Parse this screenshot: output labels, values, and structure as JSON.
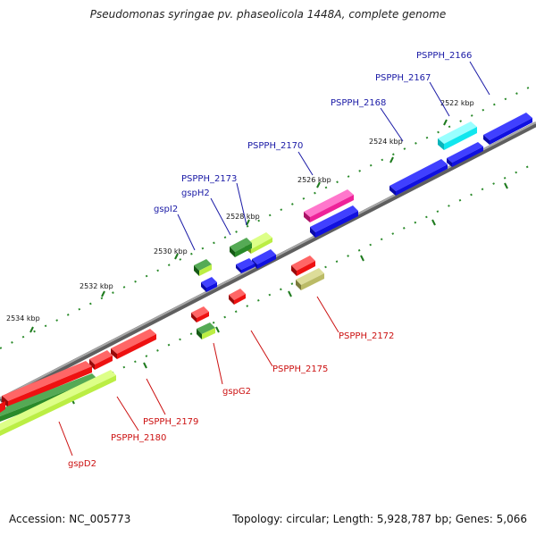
{
  "title": "Pseudomonas syringae pv. phaseolicola 1448A, complete genome",
  "footer": {
    "accession": "Accession: NC_005773",
    "summary": "Topology: circular; Length: 5,928,787 bp; Genes: 5,066"
  },
  "scale_labels": [
    "2522 kbp",
    "2524 kbp",
    "2526 kbp",
    "2528 kbp",
    "2530 kbp",
    "2532 kbp",
    "2534 kbp"
  ],
  "gene_labels": {
    "pspph_2166": "PSPPH_2166",
    "pspph_2167": "PSPPH_2167",
    "pspph_2168": "PSPPH_2168",
    "pspph_2170": "PSPPH_2170",
    "pspph_2173": "PSPPH_2173",
    "gsph2": "gspH2",
    "gspi2": "gspI2",
    "pspph_2172": "PSPPH_2172",
    "pspph_2175": "PSPPH_2175",
    "gspg2": "gspG2",
    "pspph_2179": "PSPPH_2179",
    "pspph_2180": "PSPPH_2180",
    "gspd2": "gspD2"
  },
  "colors": {
    "backbone": "#8a8a8a",
    "tick": "#2a8a2a",
    "blue_gene": "#1010e0",
    "red_gene": "#ee1111",
    "cyan_gene": "#11e6ee",
    "magenta_gene": "#ee2299",
    "green_gene": "#2a8a2a",
    "lime_gene": "#bbee44",
    "olive_gene": "#bbbb66",
    "label_blue": "#1a1aa6",
    "label_red": "#cc1111"
  }
}
